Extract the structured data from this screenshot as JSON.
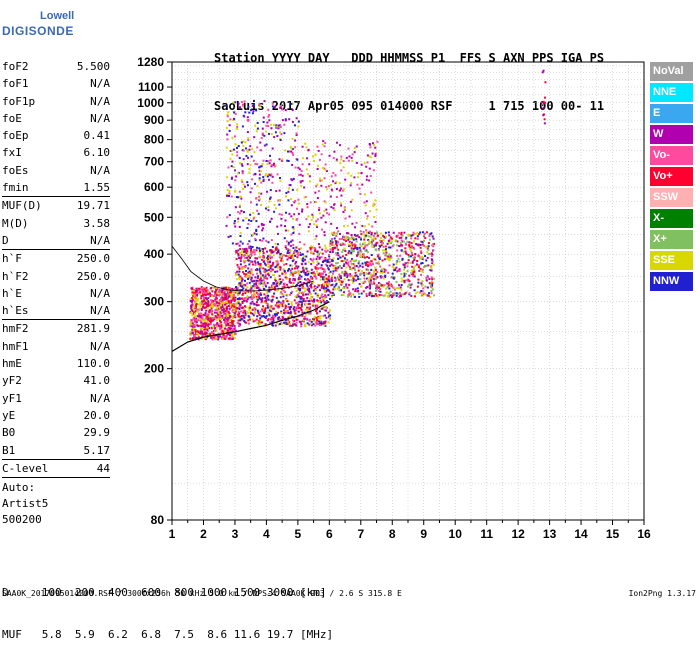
{
  "logo": {
    "top": "Lowell",
    "bottom": "DIGISONDE",
    "color": "#3b6ab5"
  },
  "header": {
    "line1": "Station YYYY DAY   DDD HHMMSS P1  FFS S AXN PPS IGA PS",
    "line2": "SaoLuis 2017 Apr05 095 014000 RSF     1 715 100 00- 11"
  },
  "params": [
    {
      "k": "foF2",
      "v": "5.500"
    },
    {
      "k": "foF1",
      "v": "N/A"
    },
    {
      "k": "foF1p",
      "v": "N/A"
    },
    {
      "k": "foE",
      "v": "N/A"
    },
    {
      "k": "foEp",
      "v": "0.41"
    },
    {
      "k": "fxI",
      "v": "6.10"
    },
    {
      "k": "foEs",
      "v": "N/A"
    },
    {
      "k": "fmin",
      "v": "1.55"
    },
    {
      "k": "MUF(D)",
      "v": "19.71",
      "sep": true
    },
    {
      "k": "M(D)",
      "v": "3.58"
    },
    {
      "k": "D",
      "v": "N/A"
    },
    {
      "k": "h`F",
      "v": "250.0",
      "sep": true
    },
    {
      "k": "h`F2",
      "v": "250.0"
    },
    {
      "k": "h`E",
      "v": "N/A"
    },
    {
      "k": "h`Es",
      "v": "N/A"
    },
    {
      "k": "hmF2",
      "v": "281.9",
      "sep": true
    },
    {
      "k": "hmF1",
      "v": "N/A"
    },
    {
      "k": "hmE",
      "v": "110.0"
    },
    {
      "k": "yF2",
      "v": "41.0"
    },
    {
      "k": "yF1",
      "v": "N/A"
    },
    {
      "k": "yE",
      "v": "20.0"
    },
    {
      "k": "B0",
      "v": "29.9"
    },
    {
      "k": "B1",
      "v": "5.17"
    },
    {
      "k": "C-level",
      "v": "44",
      "sep": true
    }
  ],
  "auto": {
    "line1": "Auto:",
    "line2": "Artist5",
    "line3": "500200"
  },
  "legend": [
    {
      "label": "NoVal",
      "color": "#a0a0a0"
    },
    {
      "label": "NNE",
      "color": "#00e8ff"
    },
    {
      "label": "E",
      "color": "#3aa8f0"
    },
    {
      "label": "W",
      "color": "#b000b0"
    },
    {
      "label": "Vo-",
      "color": "#ff4aa0"
    },
    {
      "label": "Vo+",
      "color": "#ff0030"
    },
    {
      "label": "SSW",
      "color": "#ffb0b0"
    },
    {
      "label": "X-",
      "color": "#008000"
    },
    {
      "label": "X+",
      "color": "#80c060"
    },
    {
      "label": "SSE",
      "color": "#d8d800"
    },
    {
      "label": "NNW",
      "color": "#2020d0"
    }
  ],
  "dmuf": {
    "d_line": "D     100  200  400  600  800 1000 1500 3000 [km]",
    "muf_line": "MUF   5.8  5.9  6.2  6.8  7.5  8.6 11.6 19.7 [MHz]"
  },
  "footer": {
    "left": "SAA0K_2017095014000.RSF / 300fx256h 50 kHz 5.0 km / DPS-4 SAA0K 903 / 2.6 S 315.8 E",
    "right": "Ion2Png 1.3.17"
  },
  "chart_data": {
    "type": "scatter",
    "title": "",
    "xlabel": "",
    "ylabel": "",
    "xlim": [
      1,
      16
    ],
    "ylim": [
      80,
      1280
    ],
    "yscale": "log",
    "xticks": [
      1,
      2,
      3,
      4,
      5,
      6,
      7,
      8,
      9,
      10,
      11,
      12,
      13,
      14,
      15,
      16
    ],
    "yticks": [
      80,
      200,
      300,
      400,
      500,
      600,
      700,
      800,
      900,
      1000,
      1100,
      1280
    ],
    "grid": true,
    "trace_curve": {
      "x": [
        1.0,
        1.5,
        2.0,
        2.5,
        3.0,
        3.5,
        4.0,
        4.5,
        5.0,
        5.5,
        6.0
      ],
      "y": [
        222,
        235,
        242,
        246,
        250,
        255,
        260,
        268,
        275,
        285,
        300
      ]
    },
    "upper_curve": {
      "x": [
        1.0,
        1.3,
        1.6,
        2.0,
        2.4,
        2.8,
        3.2,
        3.6,
        4.0,
        4.5,
        5.0,
        5.5
      ],
      "y": [
        420,
        390,
        360,
        340,
        328,
        322,
        320,
        320,
        322,
        325,
        330,
        340
      ]
    },
    "point_clusters": [
      {
        "x": [
          1.55,
          3.0
        ],
        "y": [
          240,
          330
        ],
        "colors": [
          "#ff0030",
          "#d8d800",
          "#ff4aa0",
          "#b000b0"
        ]
      },
      {
        "x": [
          3.0,
          6.0
        ],
        "y": [
          260,
          420
        ],
        "colors": [
          "#ff0030",
          "#d8d800",
          "#b000b0",
          "#ff4aa0",
          "#2020d0"
        ]
      },
      {
        "x": [
          6.0,
          9.3
        ],
        "y": [
          310,
          460
        ],
        "colors": [
          "#b000b0",
          "#d8d800",
          "#ff4aa0",
          "#2020d0",
          "#ff0030",
          "#80c060"
        ]
      },
      {
        "x": [
          2.7,
          5.0
        ],
        "y": [
          420,
          1020
        ],
        "colors": [
          "#d8d800",
          "#b000b0",
          "#ff4aa0",
          "#2020d0"
        ]
      },
      {
        "x": [
          5.0,
          7.5
        ],
        "y": [
          420,
          800
        ],
        "colors": [
          "#b000b0",
          "#d8d800",
          "#ff4aa0"
        ]
      },
      {
        "x": [
          12.75,
          12.85
        ],
        "y": [
          880,
          1240
        ],
        "colors": [
          "#ff0030",
          "#b000b0"
        ]
      }
    ]
  }
}
